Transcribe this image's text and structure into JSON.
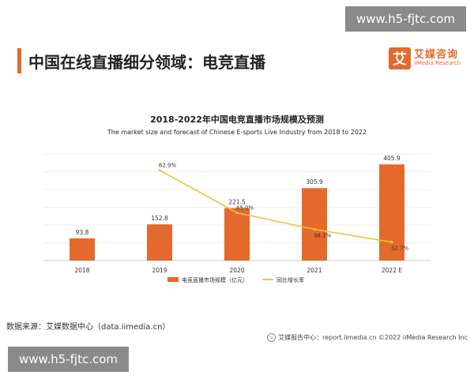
{
  "slide": {
    "title": "中国在线直播细分领域：电竞直播"
  },
  "logo": {
    "mark": "艾",
    "name_cn": "艾媒咨询",
    "name_en": "iiMedia Research"
  },
  "watermark": {
    "text": "www.h5-fjtc.com"
  },
  "source": "数据来源：艾媒数据中心（data.iimedia.cn）",
  "footer": "艾媒报告中心：report.iimedia.cn   ©2022  iiMedia Research  Inc",
  "chart_data": {
    "type": "bar",
    "title": "2018-2022年中国电竞直播市场规模及预测",
    "subtitle": "The  market size and forecast of Chinese E-sports Live Industry from 2018 to 2022",
    "categories": [
      "2018",
      "2019",
      "2020",
      "2021",
      "2022 E"
    ],
    "series": [
      {
        "name": "电竞直播市场规模（亿元）",
        "type": "bar",
        "values": [
          93.8,
          152.8,
          221.5,
          305.9,
          405.9
        ],
        "labels": [
          "93.8",
          "152.8",
          "221.5",
          "305.9",
          "405.9"
        ],
        "color": "#e4692c"
      },
      {
        "name": "同比增长率",
        "type": "line",
        "values": [
          null,
          62.9,
          45.0,
          38.1,
          32.7
        ],
        "labels": [
          "",
          "62.9%",
          "45.0%",
          "38.1%",
          "32.7%"
        ],
        "color": "#f1c232"
      }
    ],
    "ylim": [
      0,
      450
    ],
    "grid": true,
    "legend": "bottom-center"
  }
}
